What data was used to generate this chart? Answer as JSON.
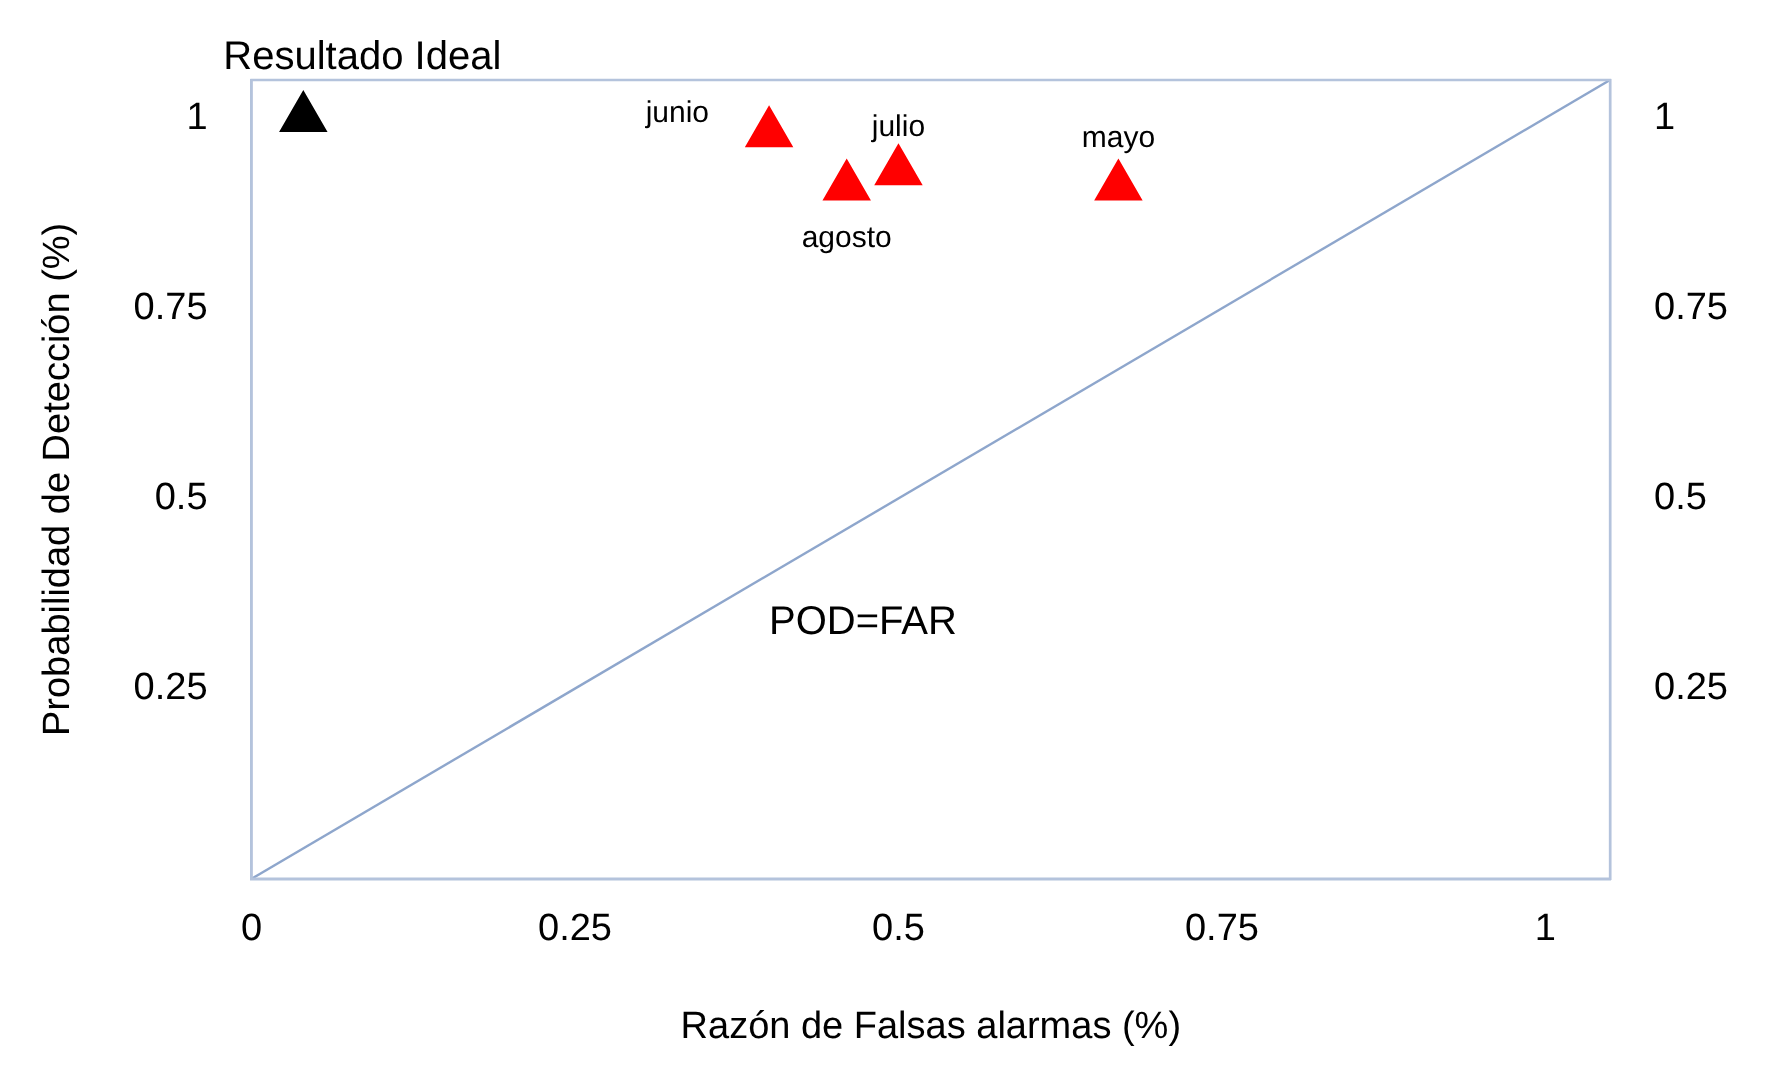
{
  "chart_data": {
    "type": "scatter",
    "xlabel": "Razón de Falsas alarmas (%)",
    "ylabel": "Probabilidad de Detección (%)",
    "xlim": [
      0,
      1.05
    ],
    "xticks": [
      0,
      0.25,
      0.5,
      0.75,
      1
    ],
    "ylim": [
      0,
      1.05
    ],
    "yticks": [
      0.25,
      0.5,
      0.75,
      1
    ],
    "y2lim": [
      0,
      1.05
    ],
    "y2ticks": [
      0.25,
      0.5,
      0.75,
      1
    ],
    "grid": false,
    "legend": false,
    "marker": "triangle",
    "series": [
      {
        "type": "line",
        "color": "#8ea6cc",
        "x": [
          0,
          1.05
        ],
        "values": [
          0,
          1.05
        ],
        "marker": "none"
      },
      {
        "color": "#000000",
        "x": [
          0.04
        ],
        "values": [
          1.0
        ]
      },
      {
        "color": "#ff0000",
        "x": [
          0.4,
          0.46,
          0.5,
          0.67
        ],
        "values": [
          0.98,
          0.91,
          0.93,
          0.91
        ]
      }
    ],
    "annotations": [
      {
        "text": "Resultado Ideal",
        "x": 0.04,
        "y": 1.0
      },
      {
        "text": "junio",
        "x": 0.4,
        "y": 0.98
      },
      {
        "text": "agosto",
        "x": 0.46,
        "y": 0.91
      },
      {
        "text": "julio",
        "x": 0.5,
        "y": 0.93
      },
      {
        "text": "mayo",
        "x": 0.67,
        "y": 0.91
      },
      "POD=FAR"
    ]
  }
}
